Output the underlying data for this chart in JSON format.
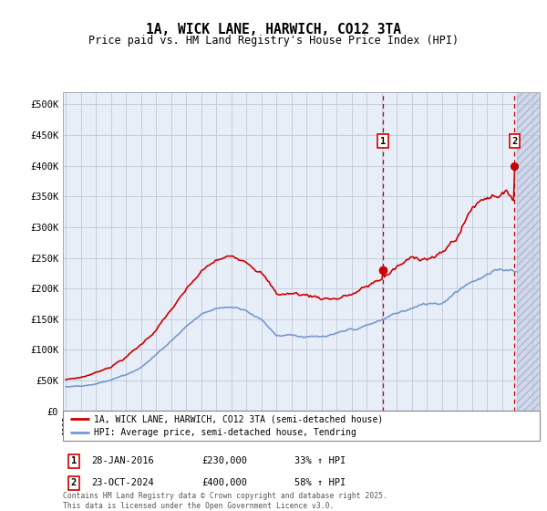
{
  "title": "1A, WICK LANE, HARWICH, CO12 3TA",
  "subtitle": "Price paid vs. HM Land Registry's House Price Index (HPI)",
  "red_label": "1A, WICK LANE, HARWICH, CO12 3TA (semi-detached house)",
  "blue_label": "HPI: Average price, semi-detached house, Tendring",
  "annotation1": {
    "num": "1",
    "date": "28-JAN-2016",
    "price": "£230,000",
    "pct": "33% ↑ HPI"
  },
  "annotation2": {
    "num": "2",
    "date": "23-OCT-2024",
    "price": "£400,000",
    "pct": "58% ↑ HPI"
  },
  "footnote": "Contains HM Land Registry data © Crown copyright and database right 2025.\nThis data is licensed under the Open Government Licence v3.0.",
  "sale1_x": 2016.08,
  "sale1_y": 230000,
  "sale2_x": 2024.81,
  "sale2_y": 400000,
  "vline1_x": 2016.08,
  "vline2_x": 2024.81,
  "ylim": [
    0,
    520000
  ],
  "xlim": [
    1994.8,
    2026.5
  ],
  "background_color": "#e8eef8",
  "hatch_start_x": 2025.0,
  "grid_color": "#c0c8d8",
  "red_color": "#cc0000",
  "blue_color": "#7799cc",
  "hatch_color": "#d0d8ee"
}
